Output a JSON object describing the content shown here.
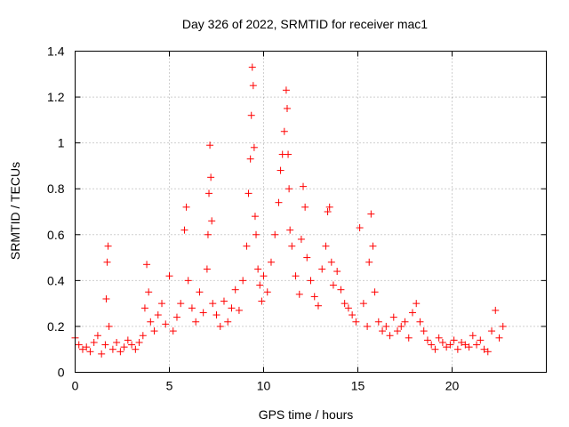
{
  "chart_data": {
    "type": "scatter",
    "title": "Day 326 of 2022, SRMTID for receiver mac1",
    "xlabel": "GPS time / hours",
    "ylabel": "SRMTID / TECUs",
    "xlim": [
      0,
      25
    ],
    "ylim": [
      0,
      1.4
    ],
    "xticks": [
      0,
      5,
      10,
      15,
      20
    ],
    "xtick_labels": [
      "0",
      "5",
      "10",
      "15",
      "20"
    ],
    "yticks": [
      0,
      0.2,
      0.4,
      0.6,
      0.8,
      1,
      1.2,
      1.4
    ],
    "ytick_labels": [
      "0",
      "0.2",
      "0.4",
      "0.6",
      "0.8",
      "1",
      "1.2",
      "1.4"
    ],
    "grid": true,
    "marker": "+",
    "color": "#ff0000",
    "series": [
      {
        "name": "SRMTID",
        "x": [
          0.0,
          0.2,
          0.4,
          0.6,
          0.8,
          1.0,
          1.2,
          1.4,
          1.6,
          1.65,
          1.7,
          1.75,
          1.8,
          2.0,
          2.2,
          2.4,
          2.6,
          2.8,
          3.0,
          3.2,
          3.4,
          3.6,
          3.7,
          3.8,
          3.9,
          4.0,
          4.2,
          4.4,
          4.6,
          4.8,
          5.0,
          5.2,
          5.4,
          5.6,
          5.8,
          5.9,
          6.0,
          6.2,
          6.4,
          6.6,
          6.8,
          7.0,
          7.05,
          7.1,
          7.15,
          7.2,
          7.25,
          7.3,
          7.5,
          7.7,
          7.9,
          8.1,
          8.3,
          8.5,
          8.7,
          8.9,
          9.1,
          9.2,
          9.3,
          9.35,
          9.4,
          9.45,
          9.5,
          9.55,
          9.6,
          9.7,
          9.8,
          9.9,
          10.0,
          10.2,
          10.4,
          10.6,
          10.8,
          10.9,
          11.0,
          11.1,
          11.2,
          11.25,
          11.3,
          11.35,
          11.4,
          11.5,
          11.7,
          11.9,
          12.0,
          12.1,
          12.2,
          12.3,
          12.5,
          12.7,
          12.9,
          13.1,
          13.3,
          13.4,
          13.5,
          13.6,
          13.7,
          13.9,
          14.1,
          14.3,
          14.5,
          14.7,
          14.9,
          15.1,
          15.3,
          15.5,
          15.6,
          15.7,
          15.8,
          15.9,
          16.1,
          16.3,
          16.5,
          16.7,
          16.9,
          17.1,
          17.3,
          17.5,
          17.7,
          17.9,
          18.1,
          18.3,
          18.5,
          18.7,
          18.9,
          19.1,
          19.3,
          19.5,
          19.7,
          19.9,
          20.1,
          20.3,
          20.5,
          20.7,
          20.9,
          21.1,
          21.3,
          21.5,
          21.7,
          21.9,
          22.1,
          22.3,
          22.5,
          22.7
        ],
        "y": [
          0.15,
          0.12,
          0.1,
          0.11,
          0.09,
          0.13,
          0.16,
          0.08,
          0.12,
          0.32,
          0.48,
          0.55,
          0.2,
          0.1,
          0.13,
          0.09,
          0.11,
          0.14,
          0.12,
          0.1,
          0.13,
          0.16,
          0.28,
          0.47,
          0.35,
          0.22,
          0.18,
          0.25,
          0.3,
          0.21,
          0.42,
          0.18,
          0.24,
          0.3,
          0.62,
          0.72,
          0.4,
          0.28,
          0.22,
          0.35,
          0.26,
          0.45,
          0.6,
          0.78,
          0.99,
          0.85,
          0.66,
          0.3,
          0.25,
          0.2,
          0.31,
          0.22,
          0.28,
          0.36,
          0.27,
          0.4,
          0.55,
          0.78,
          0.93,
          1.12,
          1.33,
          1.25,
          0.98,
          0.68,
          0.6,
          0.45,
          0.38,
          0.31,
          0.42,
          0.35,
          0.48,
          0.6,
          0.74,
          0.88,
          0.95,
          1.05,
          1.23,
          1.15,
          0.95,
          0.8,
          0.62,
          0.55,
          0.42,
          0.34,
          0.58,
          0.81,
          0.72,
          0.5,
          0.4,
          0.33,
          0.29,
          0.45,
          0.55,
          0.7,
          0.72,
          0.48,
          0.38,
          0.44,
          0.36,
          0.3,
          0.28,
          0.25,
          0.22,
          0.63,
          0.3,
          0.2,
          0.48,
          0.69,
          0.55,
          0.35,
          0.22,
          0.18,
          0.2,
          0.16,
          0.24,
          0.18,
          0.2,
          0.22,
          0.15,
          0.26,
          0.3,
          0.22,
          0.18,
          0.14,
          0.12,
          0.1,
          0.15,
          0.13,
          0.11,
          0.12,
          0.14,
          0.1,
          0.13,
          0.12,
          0.11,
          0.16,
          0.12,
          0.14,
          0.1,
          0.09,
          0.18,
          0.27,
          0.15,
          0.2
        ]
      }
    ]
  }
}
